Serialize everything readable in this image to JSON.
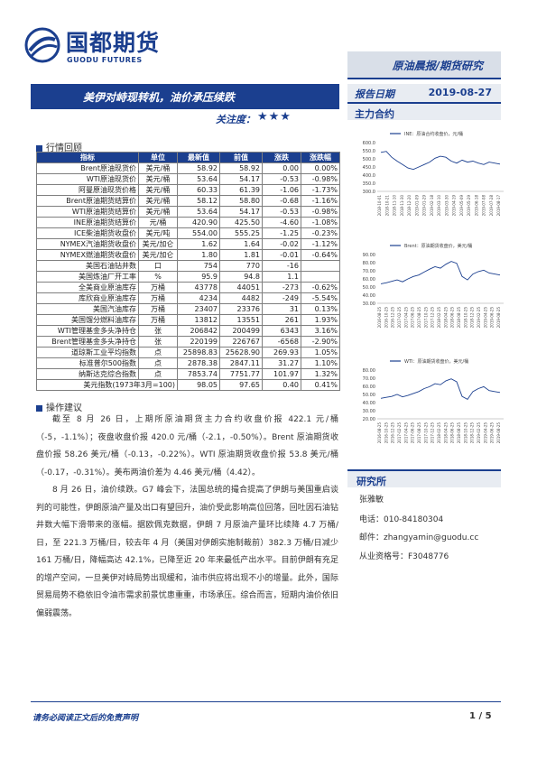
{
  "header": {
    "logo_cn": "国都期货",
    "logo_en": "GUODU FUTURES",
    "report_type": "原油晨报/期货研究",
    "title": "美伊对峙现转机，油价承压续跌",
    "attention_label": "关注度：",
    "attention_stars": "★★★",
    "report_date_label": "报告日期",
    "report_date": "2019-08-27",
    "main_contract_label": "主力合约"
  },
  "section_market": "行情回顾",
  "table": {
    "headers": [
      "指标",
      "单位",
      "最新值",
      "前值",
      "涨跌",
      "涨跌幅"
    ],
    "groups": [
      [
        [
          "Brent原油现货价",
          "美元/桶",
          "58.92",
          "58.92",
          "0.00",
          "0.00%"
        ],
        [
          "WTI原油现货价",
          "美元/桶",
          "53.64",
          "54.17",
          "-0.53",
          "-0.98%"
        ],
        [
          "阿曼原油现货价格",
          "美元/桶",
          "60.33",
          "61.39",
          "-1.06",
          "-1.73%"
        ]
      ],
      [
        [
          "Brent原油期货结算价",
          "美元/桶",
          "58.12",
          "58.80",
          "-0.68",
          "-1.16%"
        ],
        [
          "WTI原油期货结算价",
          "美元/桶",
          "53.64",
          "54.17",
          "-0.53",
          "-0.98%"
        ],
        [
          "INE原油期货结算价",
          "元/桶",
          "420.90",
          "425.50",
          "-4.60",
          "-1.08%"
        ]
      ],
      [
        [
          "ICE柴油期货收盘价",
          "美元/吨",
          "554.00",
          "555.25",
          "-1.25",
          "-0.23%"
        ],
        [
          "NYMEX汽油期货收盘价",
          "美元/加仑",
          "1.62",
          "1.64",
          "-0.02",
          "-1.12%"
        ],
        [
          "NYMEX燃油期货收盘价",
          "美元/加仑",
          "1.80",
          "1.81",
          "-0.01",
          "-0.64%"
        ]
      ],
      [
        [
          "美国石油钻井数",
          "口",
          "754",
          "770",
          "-16",
          ""
        ],
        [
          "美国炼油厂开工率",
          "%",
          "95.9",
          "94.8",
          "1.1",
          ""
        ]
      ],
      [
        [
          "全美商业原油库存",
          "万桶",
          "43778",
          "44051",
          "-273",
          "-0.62%"
        ],
        [
          "库欣商业原油库存",
          "万桶",
          "4234",
          "4482",
          "-249",
          "-5.54%"
        ],
        [
          "美国汽油库存",
          "万桶",
          "23407",
          "23376",
          "31",
          "0.13%"
        ],
        [
          "美国馏分燃料油库存",
          "万桶",
          "13812",
          "13551",
          "261",
          "1.93%"
        ]
      ],
      [
        [
          "WTI管理基金多头净持仓",
          "张",
          "206842",
          "200499",
          "6343",
          "3.16%"
        ],
        [
          "Brent管理基金多头净持仓",
          "张",
          "220199",
          "226767",
          "-6568",
          "-2.90%"
        ]
      ],
      [
        [
          "道琼斯工业平均指数",
          "点",
          "25898.83",
          "25628.90",
          "269.93",
          "1.05%"
        ],
        [
          "标准普尔500指数",
          "点",
          "2878.38",
          "2847.11",
          "31.27",
          "1.10%"
        ],
        [
          "纳斯达克综合指数",
          "点",
          "7853.74",
          "7751.77",
          "101.97",
          "1.32%"
        ]
      ]
    ],
    "dxy_label": "美元指数(1973年3月=100)",
    "dxy_row": [
      "98.05",
      "97.65",
      "0.40",
      "0.41%"
    ]
  },
  "section_advice": "操作建议",
  "paragraphs": [
    "截至 8 月 26 日，上期所原油期货主力合约收盘价报 422.1 元/桶（-5，-1.1%）；夜盘收盘价报 420.0 元/桶（-2.1，-0.50%）。Brent 原油期货收盘价报 58.26 美元/桶（-0.13，-0.22%）。WTI 原油期货收盘价报 53.8 美元/桶（-0.17，-0.31%）。美布两油价差为 4.46 美元/桶（4.42）。",
    "8 月 26 日，油价续跌。G7 峰会下，法国总统的撮合提高了伊朗与美国重启谈判的可能性，伊朗原油产量及出口有望回升，油价受此影响高位回落，回吐因石油钻井数大幅下滑带来的涨幅。据欧佩克数据，伊朗 7 月原油产量环比续降 4.7 万桶/日，至 221.3 万桶/日，较去年 4 月（美国对伊朗实施制裁前）382.3 万桶/日减少 161 万桶/日，降幅高达 42.1%，已降至近 20 年来最低产出水平。目前伊朗有充足的增产空间，一旦美伊对峙局势出现缓和，油市供应将出现不小的增量。此外，国际贸易局势不稳依旧令油市需求前景忧患重重，市场承压。综合而言，短期内油价依旧偏弱震荡。"
  ],
  "charts": [
    {
      "legend": "INE：原油合约收盘价，元/桶",
      "yticks": [
        "600.0",
        "550.0",
        "500.0",
        "450.0",
        "400.0",
        "350.0",
        "300.0"
      ],
      "xticks": [
        "2018-10-01",
        "2018-10-21",
        "2018-11-10",
        "2018-11-30",
        "2018-12-20",
        "2019-01-09",
        "2019-01-29",
        "2019-02-18",
        "2019-03-10",
        "2019-03-30",
        "2019-04-19",
        "2019-05-09",
        "2019-05-29",
        "2019-06-18",
        "2019-07-08",
        "2019-07-28",
        "2019-08-17"
      ]
    },
    {
      "legend": "Brent：原油期货收盘价，美元/桶",
      "yticks": [
        "90.00",
        "80.00",
        "70.00",
        "60.00",
        "50.00",
        "40.00",
        "30.00"
      ],
      "xticks": [
        "2016-08-25",
        "2016-10-25",
        "2016-12-25",
        "2017-02-25",
        "2017-04-25",
        "2017-06-25",
        "2017-08-25",
        "2017-10-25",
        "2017-12-25",
        "2018-02-25",
        "2018-04-25",
        "2018-06-25",
        "2018-08-25",
        "2018-10-25",
        "2018-12-25",
        "2019-02-25",
        "2019-04-25",
        "2019-06-25",
        "2019-08-25"
      ]
    },
    {
      "legend": "WTI：原油期货收盘价，美元/桶",
      "yticks": [
        "80.00",
        "70.00",
        "60.00",
        "50.00",
        "40.00",
        "30.00",
        "20.00"
      ],
      "xticks": [
        "2016-08-25",
        "2016-10-25",
        "2016-12-25",
        "2017-02-25",
        "2017-04-25",
        "2017-06-25",
        "2017-08-25",
        "2017-10-25",
        "2017-12-25",
        "2018-02-25",
        "2018-04-25",
        "2018-06-25",
        "2018-08-25",
        "2018-10-25",
        "2018-12-25",
        "2019-02-25",
        "2019-04-25",
        "2019-06-25",
        "2019-08-25"
      ]
    }
  ],
  "researcher": {
    "title": "研究所",
    "name": "张雅敏",
    "phone": "电话：010-84180304",
    "email": "邮件：zhangyamin@guodu.cc",
    "license": "从业资格号：F3048776"
  },
  "footer": {
    "disclaimer": "请务必阅读正文后的免责声明",
    "page": "1 / 5"
  }
}
